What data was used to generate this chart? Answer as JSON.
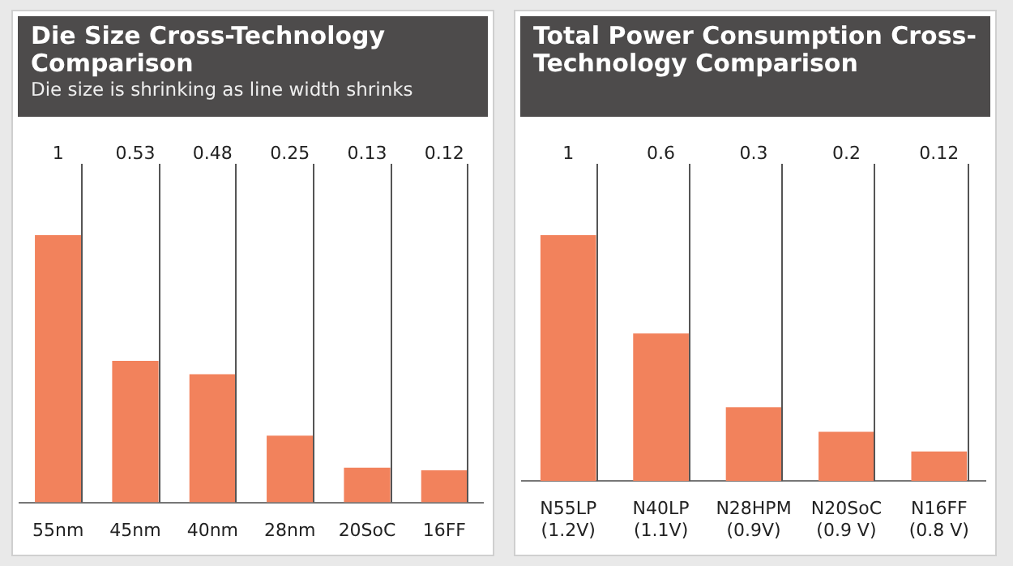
{
  "chart_data": [
    {
      "type": "bar",
      "title": "Die Size Cross-Technology Comparison",
      "subtitle": "Die size is shrinking as line width shrinks",
      "categories": [
        "55nm",
        "45nm",
        "40nm",
        "28nm",
        "20SoC",
        "16FF"
      ],
      "values": [
        1,
        0.53,
        0.48,
        0.25,
        0.13,
        0.12
      ],
      "color": "#f2825c",
      "data_labels": true,
      "tick_labels": "x",
      "grid": false,
      "legend": false
    },
    {
      "type": "bar",
      "title": "Total Power Consumption Cross-Technology Comparison",
      "categories": [
        "N55LP (1.2V)",
        "N40LP (1.1V)",
        "N28HPM (0.9V)",
        "N20SoC (0.9 V)",
        "N16FF (0.8 V)"
      ],
      "values": [
        1,
        0.6,
        0.3,
        0.2,
        0.12
      ],
      "color": "#f2825c",
      "data_labels": true,
      "tick_labels": "x",
      "grid": false,
      "legend": false
    }
  ]
}
